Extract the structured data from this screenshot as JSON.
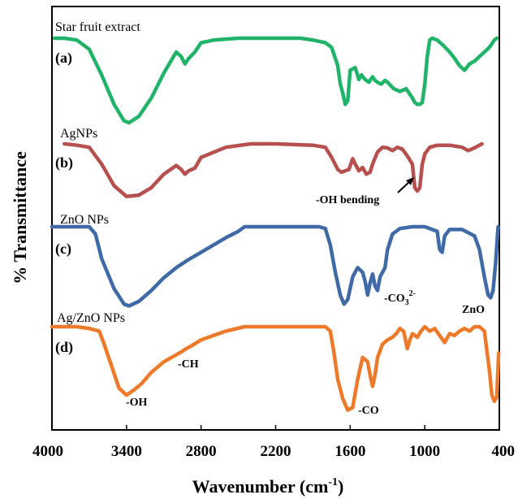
{
  "chart_data": {
    "type": "line",
    "xlabel": "Wavenumber (cm",
    "xlabel_sup": "-1",
    "xlabel_close": ")",
    "ylabel": "% Transmittance",
    "xlim": [
      4000,
      400
    ],
    "x_reversed": true,
    "xticks": [
      4000,
      3400,
      2800,
      2200,
      1600,
      1000,
      400
    ],
    "grid": false,
    "colors": {
      "a": "#22b36b",
      "b": "#b5504f",
      "c": "#3f6aa5",
      "d": "#ec7a2a"
    },
    "series": [
      {
        "key": "a",
        "name": "Star fruit extract",
        "letter": "(a)",
        "points": [
          [
            3980,
            0.0
          ],
          [
            3900,
            0.0
          ],
          [
            3800,
            0.02
          ],
          [
            3700,
            0.12
          ],
          [
            3600,
            0.4
          ],
          [
            3500,
            0.72
          ],
          [
            3420,
            0.9
          ],
          [
            3380,
            0.92
          ],
          [
            3300,
            0.85
          ],
          [
            3200,
            0.65
          ],
          [
            3100,
            0.38
          ],
          [
            3000,
            0.15
          ],
          [
            2960,
            0.2
          ],
          [
            2930,
            0.28
          ],
          [
            2900,
            0.22
          ],
          [
            2850,
            0.15
          ],
          [
            2800,
            0.05
          ],
          [
            2700,
            0.02
          ],
          [
            2500,
            0.0
          ],
          [
            2200,
            0.0
          ],
          [
            2000,
            0.0
          ],
          [
            1900,
            0.02
          ],
          [
            1800,
            0.05
          ],
          [
            1750,
            0.1
          ],
          [
            1700,
            0.3
          ],
          [
            1680,
            0.5
          ],
          [
            1660,
            0.6
          ],
          [
            1640,
            0.72
          ],
          [
            1620,
            0.68
          ],
          [
            1600,
            0.35
          ],
          [
            1560,
            0.32
          ],
          [
            1530,
            0.45
          ],
          [
            1510,
            0.4
          ],
          [
            1480,
            0.45
          ],
          [
            1450,
            0.48
          ],
          [
            1420,
            0.42
          ],
          [
            1400,
            0.46
          ],
          [
            1380,
            0.48
          ],
          [
            1350,
            0.5
          ],
          [
            1320,
            0.46
          ],
          [
            1300,
            0.48
          ],
          [
            1250,
            0.55
          ],
          [
            1200,
            0.58
          ],
          [
            1150,
            0.55
          ],
          [
            1100,
            0.65
          ],
          [
            1080,
            0.7
          ],
          [
            1060,
            0.72
          ],
          [
            1040,
            0.72
          ],
          [
            1020,
            0.7
          ],
          [
            1000,
            0.5
          ],
          [
            980,
            0.2
          ],
          [
            960,
            0.02
          ],
          [
            940,
            0.0
          ],
          [
            900,
            0.02
          ],
          [
            850,
            0.08
          ],
          [
            800,
            0.15
          ],
          [
            760,
            0.22
          ],
          [
            720,
            0.3
          ],
          [
            680,
            0.35
          ],
          [
            640,
            0.28
          ],
          [
            600,
            0.25
          ],
          [
            560,
            0.2
          ],
          [
            520,
            0.15
          ],
          [
            480,
            0.1
          ],
          [
            440,
            0.02
          ],
          [
            420,
            0.0
          ]
        ]
      },
      {
        "key": "b",
        "name": "AgNPs",
        "letter": "(b)",
        "points": [
          [
            3900,
            0.0
          ],
          [
            3800,
            0.02
          ],
          [
            3700,
            0.05
          ],
          [
            3600,
            0.3
          ],
          [
            3500,
            0.62
          ],
          [
            3400,
            0.78
          ],
          [
            3300,
            0.76
          ],
          [
            3200,
            0.65
          ],
          [
            3100,
            0.45
          ],
          [
            3000,
            0.32
          ],
          [
            2960,
            0.38
          ],
          [
            2930,
            0.45
          ],
          [
            2900,
            0.4
          ],
          [
            2850,
            0.36
          ],
          [
            2800,
            0.2
          ],
          [
            2600,
            0.05
          ],
          [
            2400,
            0.0
          ],
          [
            2200,
            0.0
          ],
          [
            1900,
            0.02
          ],
          [
            1800,
            0.05
          ],
          [
            1750,
            0.2
          ],
          [
            1700,
            0.38
          ],
          [
            1670,
            0.42
          ],
          [
            1640,
            0.4
          ],
          [
            1610,
            0.38
          ],
          [
            1580,
            0.22
          ],
          [
            1560,
            0.3
          ],
          [
            1530,
            0.4
          ],
          [
            1500,
            0.35
          ],
          [
            1470,
            0.45
          ],
          [
            1440,
            0.42
          ],
          [
            1420,
            0.3
          ],
          [
            1380,
            0.12
          ],
          [
            1340,
            0.05
          ],
          [
            1300,
            0.06
          ],
          [
            1260,
            0.1
          ],
          [
            1220,
            0.05
          ],
          [
            1180,
            0.08
          ],
          [
            1140,
            0.18
          ],
          [
            1100,
            0.3
          ],
          [
            1080,
            0.65
          ],
          [
            1060,
            0.7
          ],
          [
            1040,
            0.65
          ],
          [
            1020,
            0.3
          ],
          [
            1000,
            0.15
          ],
          [
            960,
            0.05
          ],
          [
            900,
            0.02
          ],
          [
            800,
            0.02
          ],
          [
            700,
            0.05
          ],
          [
            650,
            0.1
          ],
          [
            600,
            0.06
          ],
          [
            560,
            0.02
          ],
          [
            540,
            0.0
          ]
        ]
      },
      {
        "key": "c",
        "name": "ZnO NPs",
        "letter": "(c)",
        "points": [
          [
            4000,
            0.0
          ],
          [
            3700,
            0.0
          ],
          [
            3650,
            0.08
          ],
          [
            3600,
            0.35
          ],
          [
            3500,
            0.68
          ],
          [
            3420,
            0.85
          ],
          [
            3380,
            0.87
          ],
          [
            3300,
            0.82
          ],
          [
            3200,
            0.7
          ],
          [
            3100,
            0.56
          ],
          [
            3000,
            0.45
          ],
          [
            2900,
            0.36
          ],
          [
            2800,
            0.28
          ],
          [
            2700,
            0.2
          ],
          [
            2600,
            0.12
          ],
          [
            2500,
            0.05
          ],
          [
            2450,
            0.0
          ],
          [
            2200,
            0.0
          ],
          [
            2000,
            0.0
          ],
          [
            1850,
            0.0
          ],
          [
            1800,
            0.02
          ],
          [
            1760,
            0.2
          ],
          [
            1720,
            0.5
          ],
          [
            1680,
            0.75
          ],
          [
            1650,
            0.85
          ],
          [
            1620,
            0.8
          ],
          [
            1580,
            0.55
          ],
          [
            1540,
            0.45
          ],
          [
            1500,
            0.5
          ],
          [
            1480,
            0.6
          ],
          [
            1460,
            0.75
          ],
          [
            1440,
            0.62
          ],
          [
            1420,
            0.52
          ],
          [
            1400,
            0.65
          ],
          [
            1380,
            0.7
          ],
          [
            1360,
            0.55
          ],
          [
            1320,
            0.45
          ],
          [
            1300,
            0.25
          ],
          [
            1260,
            0.08
          ],
          [
            1200,
            0.02
          ],
          [
            1100,
            0.0
          ],
          [
            1000,
            0.0
          ],
          [
            900,
            0.05
          ],
          [
            880,
            0.25
          ],
          [
            860,
            0.28
          ],
          [
            840,
            0.1
          ],
          [
            800,
            0.03
          ],
          [
            700,
            0.03
          ],
          [
            600,
            0.1
          ],
          [
            560,
            0.25
          ],
          [
            520,
            0.55
          ],
          [
            490,
            0.75
          ],
          [
            470,
            0.78
          ],
          [
            450,
            0.7
          ],
          [
            430,
            0.4
          ],
          [
            410,
            0.0
          ]
        ]
      },
      {
        "key": "d",
        "name": "Ag/ZnO NPs",
        "letter": "(d)",
        "points": [
          [
            4000,
            0.0
          ],
          [
            3800,
            0.0
          ],
          [
            3700,
            0.02
          ],
          [
            3620,
            0.05
          ],
          [
            3580,
            0.2
          ],
          [
            3520,
            0.45
          ],
          [
            3460,
            0.7
          ],
          [
            3400,
            0.78
          ],
          [
            3340,
            0.72
          ],
          [
            3280,
            0.65
          ],
          [
            3200,
            0.52
          ],
          [
            3100,
            0.4
          ],
          [
            3000,
            0.32
          ],
          [
            2950,
            0.28
          ],
          [
            2920,
            0.25
          ],
          [
            2880,
            0.22
          ],
          [
            2800,
            0.15
          ],
          [
            2700,
            0.1
          ],
          [
            2600,
            0.05
          ],
          [
            2450,
            0.0
          ],
          [
            2200,
            0.0
          ],
          [
            1900,
            0.0
          ],
          [
            1800,
            0.0
          ],
          [
            1760,
            0.05
          ],
          [
            1730,
            0.3
          ],
          [
            1700,
            0.6
          ],
          [
            1660,
            0.82
          ],
          [
            1620,
            0.95
          ],
          [
            1580,
            0.92
          ],
          [
            1540,
            0.6
          ],
          [
            1500,
            0.35
          ],
          [
            1460,
            0.4
          ],
          [
            1440,
            0.55
          ],
          [
            1420,
            0.68
          ],
          [
            1400,
            0.55
          ],
          [
            1380,
            0.35
          ],
          [
            1340,
            0.2
          ],
          [
            1300,
            0.15
          ],
          [
            1260,
            0.12
          ],
          [
            1230,
            0.08
          ],
          [
            1200,
            0.02
          ],
          [
            1170,
            0.05
          ],
          [
            1140,
            0.25
          ],
          [
            1120,
            0.15
          ],
          [
            1100,
            0.08
          ],
          [
            1060,
            0.12
          ],
          [
            1030,
            0.05
          ],
          [
            1000,
            0.0
          ],
          [
            960,
            0.05
          ],
          [
            920,
            0.02
          ],
          [
            880,
            0.1
          ],
          [
            840,
            0.18
          ],
          [
            800,
            0.08
          ],
          [
            760,
            0.1
          ],
          [
            720,
            0.05
          ],
          [
            680,
            0.02
          ],
          [
            640,
            0.05
          ],
          [
            600,
            0.0
          ],
          [
            560,
            0.0
          ],
          [
            520,
            0.05
          ],
          [
            480,
            0.5
          ],
          [
            460,
            0.78
          ],
          [
            440,
            0.85
          ],
          [
            420,
            0.8
          ],
          [
            405,
            0.3
          ]
        ]
      }
    ],
    "annotations": {
      "oh_bending": "-OH bending",
      "co3": "-CO",
      "co3_sub": "3",
      "co3_sup": "2-",
      "zno": "ZnO",
      "ch": "-CH",
      "oh": "-OH",
      "co": "-CO"
    }
  }
}
